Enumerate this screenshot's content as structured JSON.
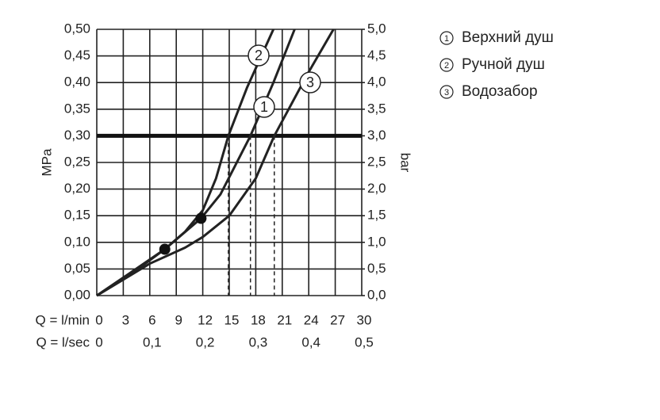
{
  "chart_data": {
    "type": "line",
    "x_title": "Q = l/min",
    "x2_title": "Q = l/sec",
    "y_title": "MPa",
    "y2_title": "bar",
    "xlim": [
      0,
      30
    ],
    "xticks": [
      0,
      3,
      6,
      9,
      12,
      15,
      18,
      21,
      24,
      27,
      30
    ],
    "x2lim": [
      0,
      0.5
    ],
    "x2ticks": [
      0,
      {
        "value": 0.1,
        "label": "0,1"
      },
      {
        "value": 0.2,
        "label": "0,2"
      },
      {
        "value": 0.3,
        "label": "0,3"
      },
      {
        "value": 0.4,
        "label": "0,4"
      },
      {
        "value": 0.5,
        "label": "0,5"
      }
    ],
    "ylim": [
      0,
      0.5
    ],
    "yticks": [
      {
        "value": 0,
        "label": "0,00"
      },
      {
        "value": 0.05,
        "label": "0,05"
      },
      {
        "value": 0.1,
        "label": "0,10"
      },
      {
        "value": 0.15,
        "label": "0,15"
      },
      {
        "value": 0.2,
        "label": "0,20"
      },
      {
        "value": 0.25,
        "label": "0,25"
      },
      {
        "value": 0.3,
        "label": "0,30"
      },
      {
        "value": 0.35,
        "label": "0,35"
      },
      {
        "value": 0.4,
        "label": "0,40"
      },
      {
        "value": 0.45,
        "label": "0,45"
      },
      {
        "value": 0.5,
        "label": "0,50"
      }
    ],
    "y2lim": [
      0,
      5
    ],
    "y2ticks": [
      {
        "value": 0,
        "label": "0,0"
      },
      {
        "value": 0.5,
        "label": "0,5"
      },
      {
        "value": 1,
        "label": "1,0"
      },
      {
        "value": 1.5,
        "label": "1,5"
      },
      {
        "value": 2,
        "label": "2,0"
      },
      {
        "value": 2.5,
        "label": "2,5"
      },
      {
        "value": 3,
        "label": "3,0"
      },
      {
        "value": 3.5,
        "label": "3,5"
      },
      {
        "value": 4,
        "label": "4,0"
      },
      {
        "value": 4.5,
        "label": "4,5"
      },
      {
        "value": 5,
        "label": "5,0"
      }
    ],
    "grid": true,
    "color": "#222222",
    "reference_y": 0.3,
    "reference_x": [
      14.9,
      17.4,
      20.1
    ],
    "markers": {
      "x": [
        7.7,
        11.8
      ],
      "values": [
        0.087,
        0.145
      ]
    },
    "series": [
      {
        "name": "Верхний душ",
        "label": "1",
        "x": [
          0,
          4,
          7.7,
          11.8,
          14,
          17.4,
          20,
          22.4
        ],
        "values": [
          0,
          0.045,
          0.087,
          0.145,
          0.19,
          0.3,
          0.4,
          0.5
        ]
      },
      {
        "name": "Ручной душ",
        "label": "2",
        "x": [
          0,
          4,
          7.7,
          10,
          12,
          13.5,
          14.9,
          17,
          20
        ],
        "values": [
          0,
          0.042,
          0.087,
          0.12,
          0.16,
          0.22,
          0.3,
          0.39,
          0.5
        ]
      },
      {
        "name": "Водозабор",
        "label": "3",
        "x": [
          0,
          6,
          10,
          12,
          15,
          18,
          20.1,
          24,
          26.8
        ],
        "values": [
          0,
          0.06,
          0.09,
          0.11,
          0.15,
          0.22,
          0.3,
          0.42,
          0.5
        ]
      }
    ]
  }
}
